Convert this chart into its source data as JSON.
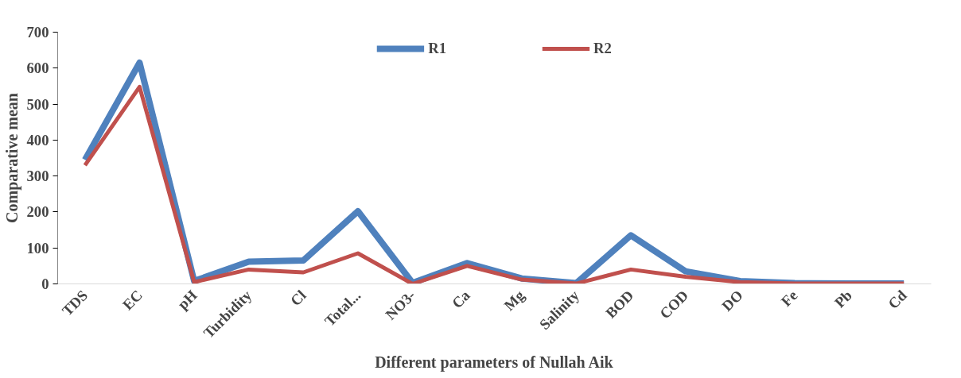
{
  "chart_data": {
    "type": "line",
    "xlabel": "Different parameters of Nullah Aik",
    "ylabel": "Comparative mean",
    "categories": [
      "TDS",
      "EC",
      "pH",
      "Turbidity",
      "Cl",
      "Total...",
      "NO3-",
      "Ca",
      "Mg",
      "Salinity",
      "BOD",
      "COD",
      "DO",
      "Fe",
      "Pb",
      "Cd"
    ],
    "series": [
      {
        "name": "R1",
        "color": "#4f81bd",
        "values": [
          345,
          615,
          8,
          62,
          65,
          202,
          3,
          58,
          15,
          2,
          135,
          35,
          8,
          2,
          1,
          1
        ]
      },
      {
        "name": "R2",
        "color": "#c0504d",
        "values": [
          330,
          548,
          5,
          40,
          32,
          85,
          0,
          50,
          12,
          1,
          40,
          20,
          5,
          1,
          1,
          1
        ]
      }
    ],
    "ylim": [
      0,
      700
    ],
    "yticks": [
      0,
      100,
      200,
      300,
      400,
      500,
      600,
      700
    ],
    "grid": false,
    "legend": "top",
    "marker": "none",
    "line_style": "solid"
  }
}
